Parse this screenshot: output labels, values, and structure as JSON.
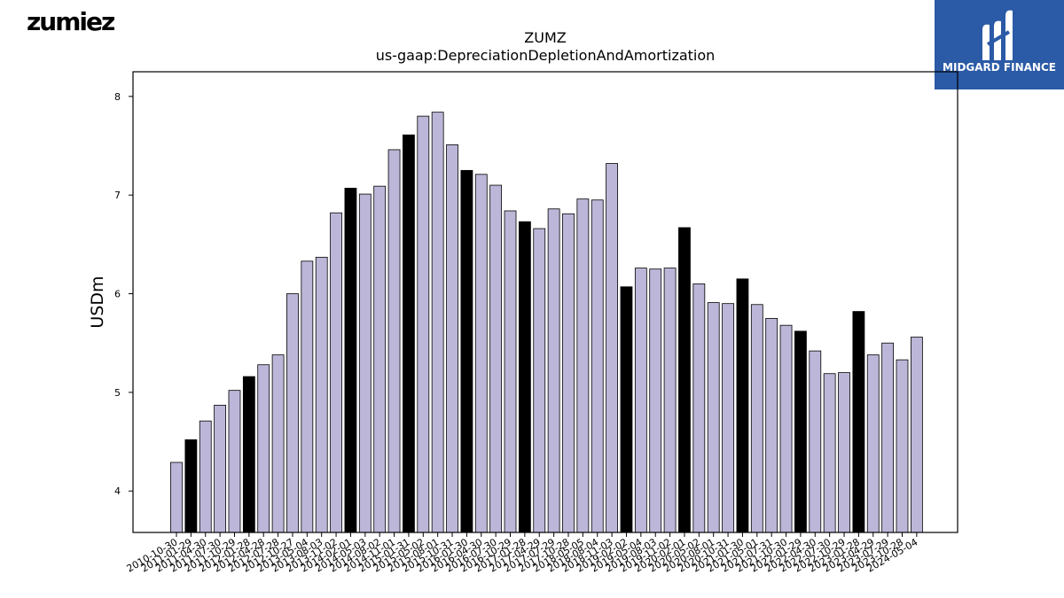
{
  "header": {
    "left_logo_text": "zumiez",
    "right_logo_text": "MIDGARD FINANCE"
  },
  "colors": {
    "bar_normal": "#bcb7d8",
    "bar_highlight": "#000000",
    "bar_edge": "#000000",
    "brand_blue": "#2b5aa6"
  },
  "chart_data": {
    "type": "bar",
    "title": "ZUMZ",
    "subtitle": "us-gaap:DepreciationDepletionAndAmortization",
    "ylabel": "USDm",
    "xlabel": "",
    "ylim": [
      3.58,
      8.25
    ],
    "yticks": [
      4,
      5,
      6,
      7,
      8
    ],
    "grid": false,
    "categories": [
      "2010-10-30",
      "2011-01-29",
      "2011-04-30",
      "2011-07-30",
      "2011-10-29",
      "2012-01-28",
      "2012-04-28",
      "2012-07-28",
      "2012-10-27",
      "2013-05-04",
      "2013-08-03",
      "2013-11-02",
      "2014-02-01",
      "2014-05-03",
      "2014-08-02",
      "2014-11-01",
      "2015-01-31",
      "2015-05-02",
      "2015-08-01",
      "2015-10-31",
      "2016-01-30",
      "2016-04-30",
      "2016-07-30",
      "2016-10-29",
      "2017-01-28",
      "2017-04-29",
      "2017-07-29",
      "2017-10-28",
      "2018-05-05",
      "2018-08-04",
      "2018-11-03",
      "2019-02-02",
      "2019-05-04",
      "2019-08-03",
      "2019-11-02",
      "2020-02-01",
      "2020-05-02",
      "2020-08-01",
      "2020-10-31",
      "2021-01-30",
      "2021-05-01",
      "2021-07-31",
      "2021-10-30",
      "2022-01-29",
      "2022-04-30",
      "2022-07-30",
      "2022-10-29",
      "2023-01-28",
      "2023-04-29",
      "2023-07-29",
      "2023-10-28",
      "2024-05-04"
    ],
    "values": [
      4.29,
      4.52,
      4.71,
      4.87,
      5.02,
      5.16,
      5.28,
      5.38,
      6.0,
      6.33,
      6.37,
      6.82,
      7.07,
      7.01,
      7.09,
      7.46,
      7.61,
      7.8,
      7.84,
      7.51,
      7.25,
      7.21,
      7.1,
      6.84,
      6.73,
      6.66,
      6.86,
      6.81,
      6.96,
      6.95,
      7.32,
      6.07,
      6.26,
      6.25,
      6.26,
      6.67,
      6.1,
      5.91,
      5.9,
      6.15,
      5.89,
      5.75,
      5.68,
      5.62,
      5.42,
      5.19,
      5.2,
      5.82,
      5.38,
      5.5,
      5.33,
      5.56
    ],
    "highlighted": [
      false,
      true,
      false,
      false,
      false,
      true,
      false,
      false,
      false,
      false,
      false,
      false,
      true,
      false,
      false,
      false,
      true,
      false,
      false,
      false,
      true,
      false,
      false,
      false,
      true,
      false,
      false,
      false,
      false,
      false,
      false,
      true,
      false,
      false,
      false,
      true,
      false,
      false,
      false,
      true,
      false,
      false,
      false,
      true,
      false,
      false,
      false,
      true,
      false,
      false,
      false,
      false
    ]
  }
}
